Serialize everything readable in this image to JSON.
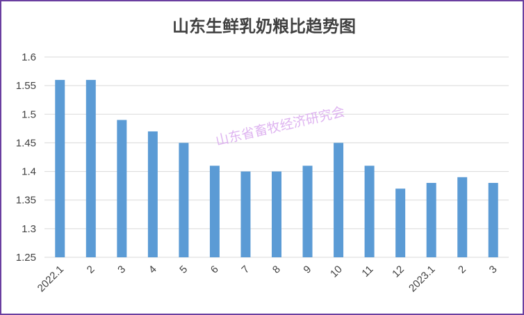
{
  "chart_data": {
    "type": "bar",
    "title": "山东生鲜乳奶粮比趋势图",
    "watermark": "山东省畜牧经济研究会",
    "categories": [
      "2022.1",
      "2",
      "3",
      "4",
      "5",
      "6",
      "7",
      "8",
      "9",
      "10",
      "11",
      "12",
      "2023.1",
      "2",
      "3"
    ],
    "series": [
      {
        "values": [
          1.56,
          1.56,
          1.49,
          1.47,
          1.45,
          1.41,
          1.4,
          1.4,
          1.41,
          1.45,
          1.41,
          1.37,
          1.38,
          1.39,
          1.38
        ]
      }
    ],
    "ylim": [
      1.25,
      1.6
    ],
    "yticks": [
      "1.25",
      "1.3",
      "1.35",
      "1.4",
      "1.45",
      "1.5",
      "1.55",
      "1.6"
    ],
    "grid": true,
    "colors": {
      "bar": "#5b9bd5",
      "grid": "#d9d9d9",
      "frame": "#6a3fa0",
      "watermark": "#d9a7ee"
    }
  }
}
